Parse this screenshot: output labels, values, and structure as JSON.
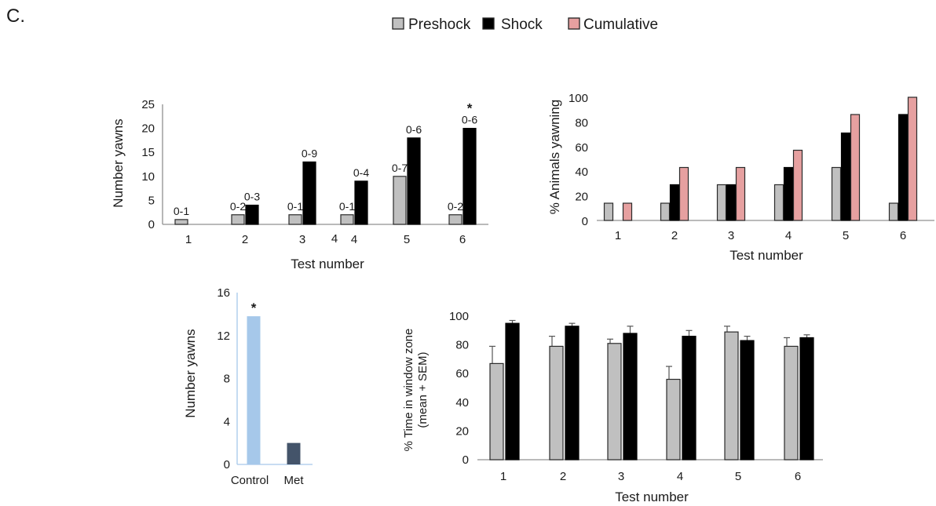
{
  "panel_letter": "C.",
  "legend": [
    {
      "label": "Preshock",
      "color": "#c0c0c0"
    },
    {
      "label": "Shock",
      "color": "#000000"
    },
    {
      "label": "Cumulative",
      "color": "#e6a0a0"
    }
  ],
  "chart_data": [
    {
      "type": "bar",
      "title": "",
      "xlabel": "Test number",
      "ylabel": "Number yawns",
      "categories": [
        "1",
        "2",
        "3",
        "4",
        "5",
        "6"
      ],
      "stray_tick_label": "4",
      "ylim": [
        0,
        25
      ],
      "yticks": [
        "0",
        "5",
        "10",
        "15",
        "20",
        "25"
      ],
      "grid": false,
      "series": [
        {
          "name": "Preshock",
          "color": "#c0c0c0",
          "values": [
            1,
            2,
            2,
            2,
            10,
            2
          ],
          "labels": [
            "0-1",
            "0-2",
            "0-1",
            "0-1",
            "0-7",
            "0-2"
          ]
        },
        {
          "name": "Shock",
          "color": "#000000",
          "values": [
            0,
            4,
            13,
            9,
            18,
            20
          ],
          "labels": [
            "",
            "0-3",
            "0-9",
            "0-4",
            "0-6",
            "0-6"
          ]
        }
      ],
      "annotations": [
        {
          "category": "6",
          "text": "*"
        }
      ]
    },
    {
      "type": "bar",
      "title": "",
      "xlabel": "Test number",
      "ylabel": "% Animals yawning",
      "categories": [
        "1",
        "2",
        "3",
        "4",
        "5",
        "6"
      ],
      "ylim": [
        0,
        100
      ],
      "yticks": [
        "0",
        "20",
        "40",
        "60",
        "80",
        "100"
      ],
      "grid": false,
      "series": [
        {
          "name": "Preshock",
          "color": "#c0c0c0",
          "values": [
            14,
            14,
            29,
            29,
            43,
            14
          ]
        },
        {
          "name": "Shock",
          "color": "#000000",
          "values": [
            0,
            29,
            29,
            43,
            71,
            86
          ]
        },
        {
          "name": "Cumulative",
          "color": "#e6a0a0",
          "values": [
            14,
            43,
            43,
            57,
            86,
            100
          ]
        }
      ]
    },
    {
      "type": "bar",
      "title": "",
      "xlabel": "",
      "ylabel": "Number yawns",
      "categories": [
        "Control",
        "Met"
      ],
      "ylim": [
        0,
        16
      ],
      "yticks": [
        "0",
        "4",
        "8",
        "12",
        "16"
      ],
      "grid": false,
      "values": [
        13.8,
        2
      ],
      "colors": [
        "#a6c8ea",
        "#44546a"
      ],
      "annotations": [
        {
          "category": "Control",
          "text": "*"
        }
      ]
    },
    {
      "type": "bar",
      "title": "",
      "xlabel": "Test number",
      "ylabel": "% Time in window zone",
      "ylabel2": "(mean + SEM)",
      "categories": [
        "1",
        "2",
        "3",
        "4",
        "5",
        "6"
      ],
      "ylim": [
        0,
        100
      ],
      "yticks": [
        "0",
        "20",
        "40",
        "60",
        "80",
        "100"
      ],
      "grid": false,
      "series": [
        {
          "name": "Preshock",
          "color": "#c0c0c0",
          "values": [
            67,
            79,
            81,
            56,
            89,
            79
          ],
          "sem": [
            12,
            7,
            3,
            9,
            4,
            6
          ]
        },
        {
          "name": "Shock",
          "color": "#000000",
          "values": [
            95,
            93,
            88,
            86,
            83,
            85
          ],
          "sem": [
            2,
            2,
            5,
            4,
            3,
            2
          ]
        }
      ]
    }
  ]
}
